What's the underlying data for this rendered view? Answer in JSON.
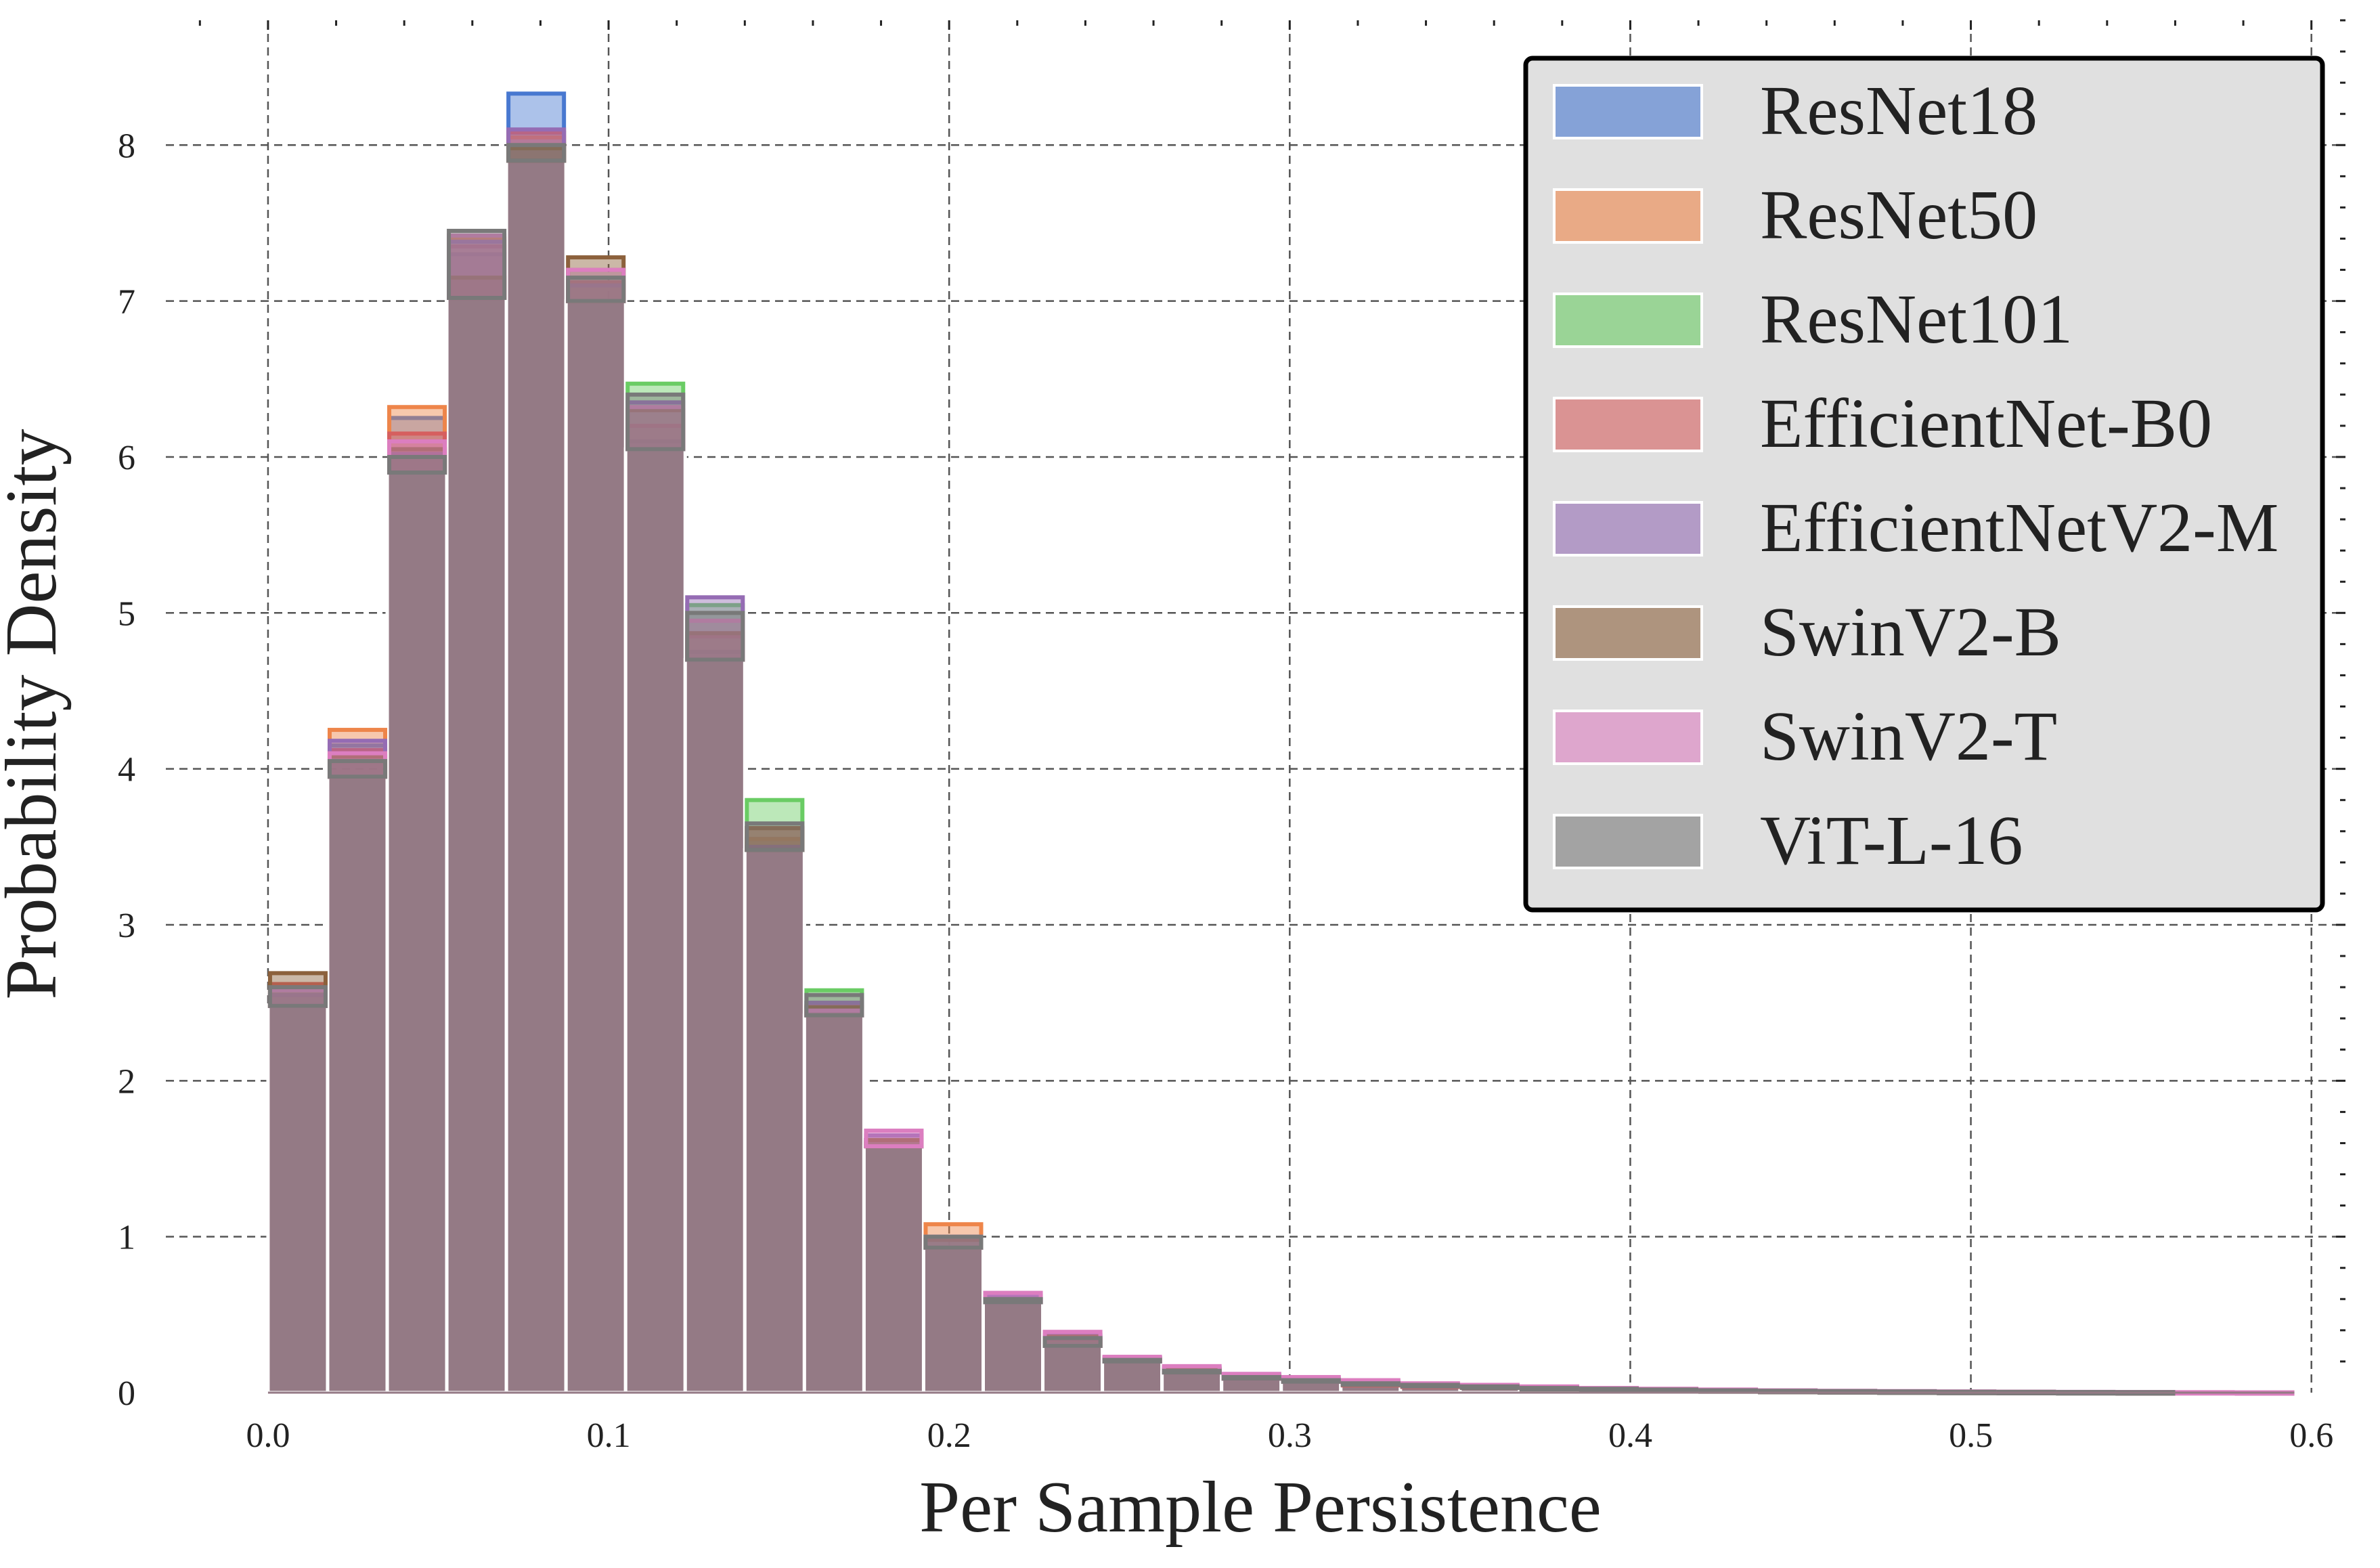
{
  "chart_data": {
    "type": "histogram",
    "title": "",
    "xlabel": "Per Sample Persistence",
    "ylabel": "Probability Density",
    "xlim": [
      -0.03,
      0.61
    ],
    "ylim": [
      0,
      8.8
    ],
    "xticks": [
      0.0,
      0.1,
      0.2,
      0.3,
      0.4,
      0.5,
      0.6
    ],
    "xtick_labels": [
      "0.0",
      "0.1",
      "0.2",
      "0.3",
      "0.4",
      "0.5",
      "0.6"
    ],
    "yticks": [
      0,
      1,
      2,
      3,
      4,
      5,
      6,
      7,
      8
    ],
    "ytick_labels": [
      "0",
      "1",
      "2",
      "3",
      "4",
      "5",
      "6",
      "7",
      "8"
    ],
    "grid": true,
    "legend_position": "top-right",
    "bin_edges": [
      0.0,
      0.0175,
      0.035,
      0.0525,
      0.07,
      0.0875,
      0.105,
      0.1225,
      0.14,
      0.1575,
      0.175,
      0.1925,
      0.21,
      0.2275,
      0.245,
      0.2625,
      0.28,
      0.2975,
      0.315,
      0.3325,
      0.35,
      0.3675,
      0.385,
      0.4025,
      0.42,
      0.4375,
      0.455,
      0.4725,
      0.49,
      0.5075,
      0.525,
      0.5425,
      0.56,
      0.5775,
      0.595
    ],
    "overlap_color": "#947a85",
    "series": [
      {
        "name": "ResNet18",
        "color": "#4878d0",
        "values": [
          2.55,
          4.15,
          6.25,
          7.3,
          8.33,
          7.0,
          6.1,
          4.75,
          3.55,
          2.5,
          1.62,
          1.0,
          0.6,
          0.35,
          0.22,
          0.15,
          0.11,
          0.08,
          0.06,
          0.05,
          0.04,
          0.03,
          0.025,
          0.02,
          0.015,
          0.012,
          0.01,
          0.008,
          0.006,
          0.005,
          0.004,
          0.003,
          0.002,
          0.001
        ]
      },
      {
        "name": "ResNet50",
        "color": "#ee854a",
        "values": [
          2.48,
          4.25,
          6.32,
          7.4,
          8.05,
          7.1,
          6.05,
          4.7,
          3.55,
          2.42,
          1.6,
          1.08,
          0.58,
          0.3,
          0.2,
          0.13,
          0.09,
          0.07,
          0.05,
          0.04,
          0.035,
          0.03,
          0.025,
          0.02,
          0.015,
          0.012,
          0.01,
          0.008,
          0.006,
          0.005,
          0.004,
          0.003,
          0.002,
          0.001
        ]
      },
      {
        "name": "ResNet101",
        "color": "#6acc64",
        "values": [
          2.6,
          3.95,
          5.9,
          7.02,
          8.0,
          7.2,
          6.47,
          5.05,
          3.8,
          2.58,
          1.6,
          1.0,
          0.58,
          0.33,
          0.2,
          0.14,
          0.1,
          0.08,
          0.06,
          0.05,
          0.04,
          0.03,
          0.025,
          0.02,
          0.015,
          0.012,
          0.01,
          0.008,
          0.006,
          0.005,
          0.004,
          0.003,
          0.002,
          0.001
        ]
      },
      {
        "name": "EfficientNet-B0",
        "color": "#d65f5f",
        "values": [
          2.62,
          4.12,
          6.15,
          7.35,
          8.08,
          7.12,
          6.2,
          4.85,
          3.62,
          2.48,
          1.62,
          0.93,
          0.6,
          0.34,
          0.21,
          0.14,
          0.1,
          0.07,
          0.055,
          0.045,
          0.035,
          0.028,
          0.022,
          0.018,
          0.014,
          0.011,
          0.009,
          0.007,
          0.005,
          0.004,
          0.003,
          0.002,
          0.002,
          0.001
        ]
      },
      {
        "name": "EfficientNetV2-M",
        "color": "#956cb4",
        "values": [
          2.55,
          4.18,
          6.02,
          7.38,
          8.1,
          7.1,
          6.35,
          5.1,
          3.5,
          2.5,
          1.65,
          1.0,
          0.62,
          0.37,
          0.22,
          0.16,
          0.12,
          0.09,
          0.07,
          0.05,
          0.04,
          0.03,
          0.025,
          0.02,
          0.015,
          0.012,
          0.01,
          0.008,
          0.006,
          0.005,
          0.004,
          0.003,
          0.002,
          0.001
        ]
      },
      {
        "name": "SwinV2-B",
        "color": "#8c613c",
        "values": [
          2.69,
          4.08,
          6.05,
          7.15,
          7.98,
          7.28,
          6.3,
          4.87,
          3.62,
          2.47,
          1.62,
          0.98,
          0.6,
          0.36,
          0.22,
          0.15,
          0.11,
          0.08,
          0.06,
          0.05,
          0.04,
          0.03,
          0.025,
          0.02,
          0.015,
          0.012,
          0.01,
          0.008,
          0.006,
          0.005,
          0.004,
          0.003,
          0.002,
          0.001
        ]
      },
      {
        "name": "SwinV2-T",
        "color": "#dc7ec0",
        "values": [
          2.58,
          4.1,
          6.1,
          7.42,
          7.9,
          7.2,
          6.32,
          4.95,
          3.48,
          2.45,
          1.68,
          1.0,
          0.64,
          0.39,
          0.23,
          0.17,
          0.12,
          0.1,
          0.08,
          0.06,
          0.05,
          0.04,
          0.03,
          0.025,
          0.02,
          0.015,
          0.012,
          0.01,
          0.008,
          0.006,
          0.005,
          0.004,
          0.003,
          0.002
        ]
      },
      {
        "name": "ViT-L-16",
        "color": "#797979",
        "values": [
          2.6,
          4.05,
          6.0,
          7.45,
          8.0,
          7.15,
          6.4,
          5.0,
          3.65,
          2.55,
          1.58,
          1.0,
          0.6,
          0.35,
          0.21,
          0.14,
          0.1,
          0.08,
          0.06,
          0.05,
          0.04,
          0.03,
          0.025,
          0.02,
          0.015,
          0.012,
          0.01,
          0.008,
          0.006,
          0.005,
          0.004,
          0.003,
          0.002,
          0.001
        ]
      }
    ]
  }
}
